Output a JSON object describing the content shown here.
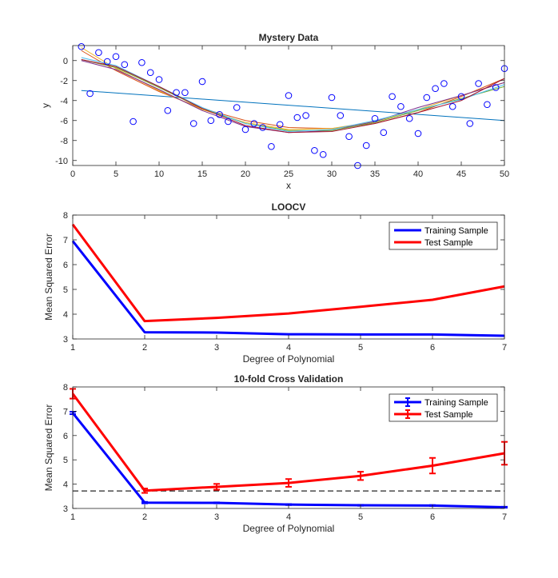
{
  "chart_data": [
    {
      "type": "scatter",
      "title": "Mystery Data",
      "xlabel": "x",
      "ylabel": "y",
      "xlim": [
        0,
        50
      ],
      "ylim": [
        -10.5,
        1.5
      ],
      "xticks": [
        "0",
        "5",
        "10",
        "15",
        "20",
        "25",
        "30",
        "35",
        "40",
        "45",
        "50"
      ],
      "yticks": [
        "0",
        "-2",
        "-4",
        "-6",
        "-8",
        "-10"
      ],
      "points": {
        "color": "#0000ff",
        "x": [
          1,
          2,
          3,
          4,
          5,
          6,
          7,
          8,
          9,
          10,
          11,
          12,
          13,
          14,
          15,
          16,
          17,
          18,
          19,
          20,
          21,
          22,
          23,
          24,
          25,
          26,
          27,
          28,
          29,
          30,
          31,
          32,
          33,
          34,
          35,
          36,
          37,
          38,
          39,
          40,
          41,
          42,
          43,
          44,
          45,
          46,
          47,
          48,
          49,
          50
        ],
        "y": [
          1.4,
          -3.3,
          0.8,
          -0.1,
          0.4,
          -0.4,
          -6.1,
          -0.2,
          -1.2,
          -1.9,
          -5.0,
          -3.2,
          -3.2,
          -6.3,
          -2.1,
          -6.0,
          -5.4,
          -6.1,
          -4.7,
          -6.9,
          -6.3,
          -6.7,
          -8.6,
          -6.4,
          -3.5,
          -5.7,
          -5.5,
          -9.0,
          -9.4,
          -3.7,
          -5.5,
          -7.6,
          -10.5,
          -8.5,
          -5.8,
          -7.2,
          -3.6,
          -4.6,
          -5.8,
          -7.3,
          -3.7,
          -2.8,
          -2.3,
          -4.6,
          -3.6,
          -6.3,
          -2.3,
          -4.4,
          -2.7,
          -0.8
        ]
      },
      "series": [
        {
          "color": "#0072bd",
          "x": [
            1,
            50
          ],
          "y": [
            -3.0,
            -6.0
          ]
        },
        {
          "color": "#d95319",
          "x": [
            1,
            5,
            10,
            15,
            20,
            25,
            30,
            35,
            40,
            45,
            50
          ],
          "y": [
            1.0,
            -1.0,
            -3.1,
            -4.8,
            -6.0,
            -6.7,
            -6.8,
            -6.3,
            -5.2,
            -3.6,
            -1.8
          ]
        },
        {
          "color": "#edb120",
          "x": [
            1,
            5,
            10,
            15,
            20,
            25,
            30,
            35,
            40,
            45,
            50
          ],
          "y": [
            1.3,
            -0.8,
            -3.0,
            -4.9,
            -6.2,
            -6.9,
            -6.8,
            -6.1,
            -4.9,
            -3.5,
            -2.2
          ]
        },
        {
          "color": "#7e2f8e",
          "x": [
            1,
            5,
            10,
            15,
            20,
            25,
            30,
            35,
            40,
            45,
            50
          ],
          "y": [
            0.0,
            -0.9,
            -2.9,
            -5.0,
            -6.6,
            -7.2,
            -7.0,
            -6.1,
            -4.7,
            -3.5,
            -2.2
          ]
        },
        {
          "color": "#77ac30",
          "x": [
            1,
            5,
            10,
            15,
            20,
            25,
            30,
            35,
            40,
            45,
            50
          ],
          "y": [
            0.1,
            -0.7,
            -2.7,
            -4.8,
            -6.3,
            -7.0,
            -7.0,
            -6.2,
            -5.0,
            -3.8,
            -2.6
          ]
        },
        {
          "color": "#4dbeee",
          "x": [
            1,
            5,
            10,
            15,
            20,
            25,
            30,
            35,
            40,
            45,
            50
          ],
          "y": [
            0.3,
            -0.5,
            -2.6,
            -4.7,
            -6.3,
            -7.1,
            -6.9,
            -6.0,
            -4.9,
            -3.9,
            -2.4
          ]
        },
        {
          "color": "#a2142f",
          "x": [
            1,
            5,
            10,
            15,
            20,
            25,
            30,
            35,
            40,
            45,
            50
          ],
          "y": [
            0.1,
            -0.6,
            -2.6,
            -4.8,
            -6.5,
            -7.2,
            -7.1,
            -6.3,
            -5.2,
            -4.0,
            -1.8
          ]
        }
      ]
    },
    {
      "type": "line",
      "title": "LOOCV",
      "xlabel": "Degree of Polynomial",
      "ylabel": "Mean Squared Error",
      "xlim": [
        1,
        7
      ],
      "ylim": [
        3,
        8
      ],
      "xticks": [
        "1",
        "2",
        "3",
        "4",
        "5",
        "6",
        "7"
      ],
      "yticks": [
        "3",
        "4",
        "5",
        "6",
        "7",
        "8"
      ],
      "legend_position": "top-right",
      "x": [
        1,
        2,
        3,
        4,
        5,
        6,
        7
      ],
      "series": [
        {
          "name": "Training Sample",
          "color": "#0000ff",
          "values": [
            6.95,
            3.27,
            3.26,
            3.19,
            3.18,
            3.18,
            3.13
          ]
        },
        {
          "name": "Test Sample",
          "color": "#ff0000",
          "values": [
            7.62,
            3.72,
            3.85,
            4.03,
            4.3,
            4.58,
            5.12
          ]
        }
      ]
    },
    {
      "type": "line",
      "title": "10-fold Cross Validation",
      "xlabel": "Degree of Polynomial",
      "ylabel": "Mean Squared Error",
      "xlim": [
        1,
        7
      ],
      "ylim": [
        3,
        8
      ],
      "xticks": [
        "1",
        "2",
        "3",
        "4",
        "5",
        "6",
        "7"
      ],
      "yticks": [
        "3",
        "4",
        "5",
        "6",
        "7",
        "8"
      ],
      "legend_position": "top-right",
      "reference_line": {
        "y": 3.72,
        "style": "dashed",
        "color": "#262626"
      },
      "x": [
        1,
        2,
        3,
        4,
        5,
        6,
        7
      ],
      "series": [
        {
          "name": "Training Sample",
          "color": "#0000ff",
          "values": [
            6.93,
            3.24,
            3.23,
            3.16,
            3.13,
            3.12,
            3.05
          ],
          "errors": [
            0.05,
            0.03,
            0.02,
            0.02,
            0.02,
            0.02,
            0.02
          ]
        },
        {
          "name": "Test Sample",
          "color": "#ff0000",
          "values": [
            7.72,
            3.73,
            3.89,
            4.05,
            4.34,
            4.76,
            5.27
          ],
          "errors": [
            0.2,
            0.09,
            0.12,
            0.16,
            0.17,
            0.32,
            0.47
          ]
        }
      ]
    }
  ]
}
